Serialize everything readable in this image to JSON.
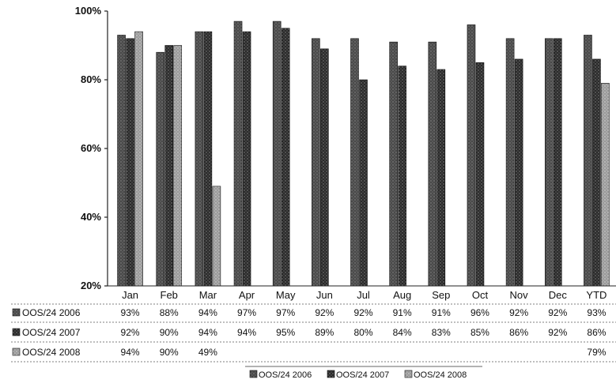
{
  "chart_data": {
    "type": "bar",
    "title": "",
    "xlabel": "",
    "ylabel": "",
    "ylim": [
      20,
      100
    ],
    "yticks": [
      "20%",
      "40%",
      "60%",
      "80%",
      "100%"
    ],
    "categories": [
      "Jan",
      "Feb",
      "Mar",
      "Apr",
      "May",
      "Jun",
      "Jul",
      "Aug",
      "Sep",
      "Oct",
      "Nov",
      "Dec",
      "YTD"
    ],
    "series": [
      {
        "name": "OOS/24 2006",
        "values": [
          93,
          88,
          94,
          97,
          97,
          92,
          92,
          91,
          91,
          96,
          92,
          92,
          93
        ],
        "labels": [
          "93%",
          "88%",
          "94%",
          "97%",
          "97%",
          "92%",
          "92%",
          "91%",
          "91%",
          "96%",
          "92%",
          "92%",
          "93%"
        ]
      },
      {
        "name": "OOS/24 2007",
        "values": [
          92,
          90,
          94,
          94,
          95,
          89,
          80,
          84,
          83,
          85,
          86,
          92,
          86
        ],
        "labels": [
          "92%",
          "90%",
          "94%",
          "94%",
          "95%",
          "89%",
          "80%",
          "84%",
          "83%",
          "85%",
          "86%",
          "92%",
          "86%"
        ]
      },
      {
        "name": "OOS/24 2008",
        "values": [
          94,
          90,
          49,
          null,
          null,
          null,
          null,
          null,
          null,
          null,
          null,
          null,
          79
        ],
        "labels": [
          "94%",
          "90%",
          "49%",
          "",
          "",
          "",
          "",
          "",
          "",
          "",
          "",
          "",
          "79%"
        ]
      }
    ],
    "grid": false,
    "legend_position": "bottom",
    "data_table": true,
    "colors": [
      "#4a4a4a",
      "#2a2a2a",
      "#9a9a9a"
    ]
  }
}
